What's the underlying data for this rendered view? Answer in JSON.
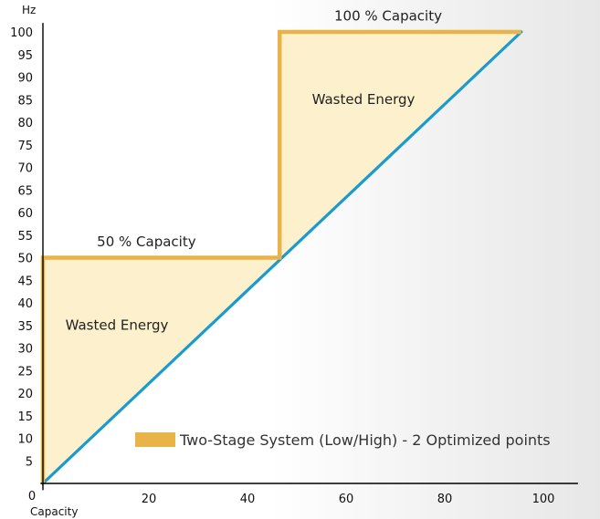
{
  "chart_data": {
    "type": "area",
    "ylabel": "Hz",
    "xlabel": "Capacity",
    "xlim": [
      0,
      100
    ],
    "ylim": [
      0,
      100
    ],
    "x_ticks": [
      0,
      20,
      40,
      60,
      80,
      100
    ],
    "y_ticks": [
      5,
      10,
      15,
      20,
      25,
      30,
      35,
      40,
      45,
      50,
      55,
      60,
      65,
      70,
      75,
      80,
      85,
      90,
      95,
      100
    ],
    "grid": false,
    "series": [
      {
        "name": "Two-Stage System (Low/High) - 2 Optimized points",
        "kind": "step",
        "color": "#e8b44a",
        "points": [
          [
            0,
            0
          ],
          [
            0,
            50
          ],
          [
            48,
            50
          ],
          [
            48,
            100
          ],
          [
            97,
            100
          ]
        ]
      },
      {
        "kind": "line",
        "color": "#1a9bd0",
        "points": [
          [
            0,
            0
          ],
          [
            97,
            100
          ]
        ]
      }
    ],
    "fill_color": "#fdf0cc",
    "annotations": [
      {
        "text": "50 % Capacity",
        "x": 21,
        "y": 52.5
      },
      {
        "text": "100 % Capacity",
        "x": 70,
        "y": 102.5
      },
      {
        "text": "Wasted Energy",
        "x": 15,
        "y": 34
      },
      {
        "text": "Wasted Energy",
        "x": 65,
        "y": 84
      }
    ],
    "legend": {
      "label": "Two-Stage System (Low/High) - 2 Optimized points",
      "placement": "bottom-right"
    }
  }
}
